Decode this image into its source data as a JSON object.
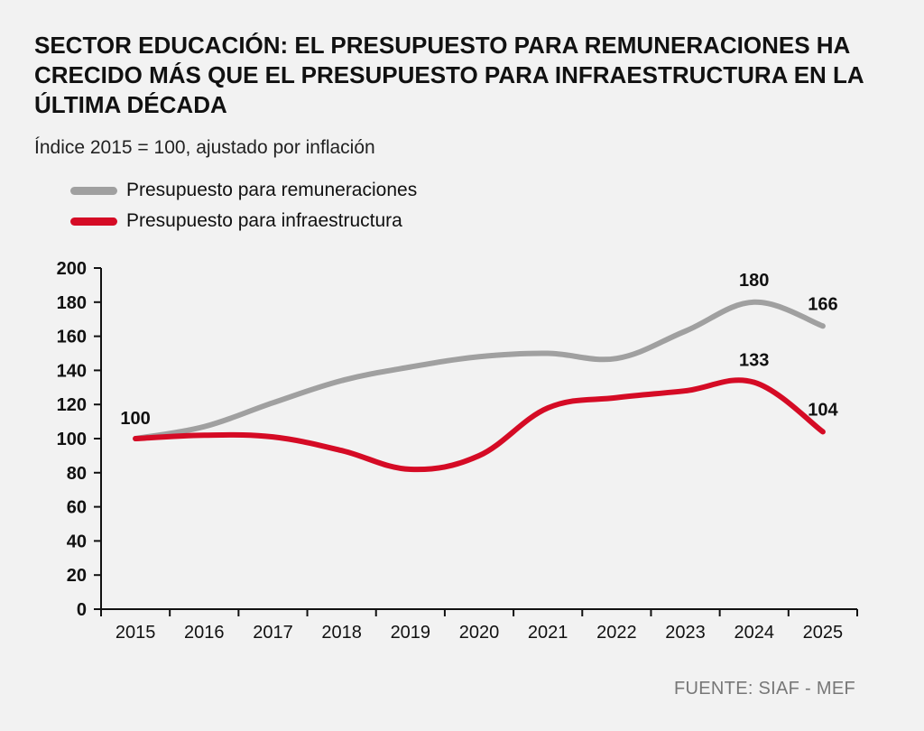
{
  "chart_data": {
    "type": "line",
    "title": "SECTOR EDUCACIÓN:  EL PRESUPUESTO PARA REMUNERACIONES HA CRECIDO MÁS QUE EL PRESUPUESTO PARA INFRAESTRUCTURA EN LA ÚLTIMA DÉCADA",
    "subtitle": "Índice 2015 = 100, ajustado por inflación",
    "x": [
      "2015",
      "2016",
      "2017",
      "2018",
      "2019",
      "2020",
      "2021",
      "2022",
      "2023",
      "2024",
      "2025"
    ],
    "ylim": [
      0,
      200
    ],
    "yticks": [
      0,
      20,
      40,
      60,
      80,
      100,
      120,
      140,
      160,
      180,
      200
    ],
    "series": [
      {
        "name": "Presupuesto para remuneraciones",
        "color": "#a0a0a0",
        "values": [
          100,
          107,
          121,
          134,
          142,
          148,
          150,
          147,
          163,
          180,
          166
        ]
      },
      {
        "name": "Presupuesto para infraestructura",
        "color": "#d50b25",
        "values": [
          100,
          102,
          101,
          93,
          82,
          90,
          118,
          124,
          128,
          133,
          104
        ]
      }
    ],
    "annotations": [
      {
        "series": 0,
        "index": 0,
        "text": "100"
      },
      {
        "series": 0,
        "index": 9,
        "text": "180"
      },
      {
        "series": 0,
        "index": 10,
        "text": "166"
      },
      {
        "series": 1,
        "index": 9,
        "text": "133"
      },
      {
        "series": 1,
        "index": 10,
        "text": "104"
      }
    ],
    "source": "FUENTE: SIAF - MEF"
  }
}
